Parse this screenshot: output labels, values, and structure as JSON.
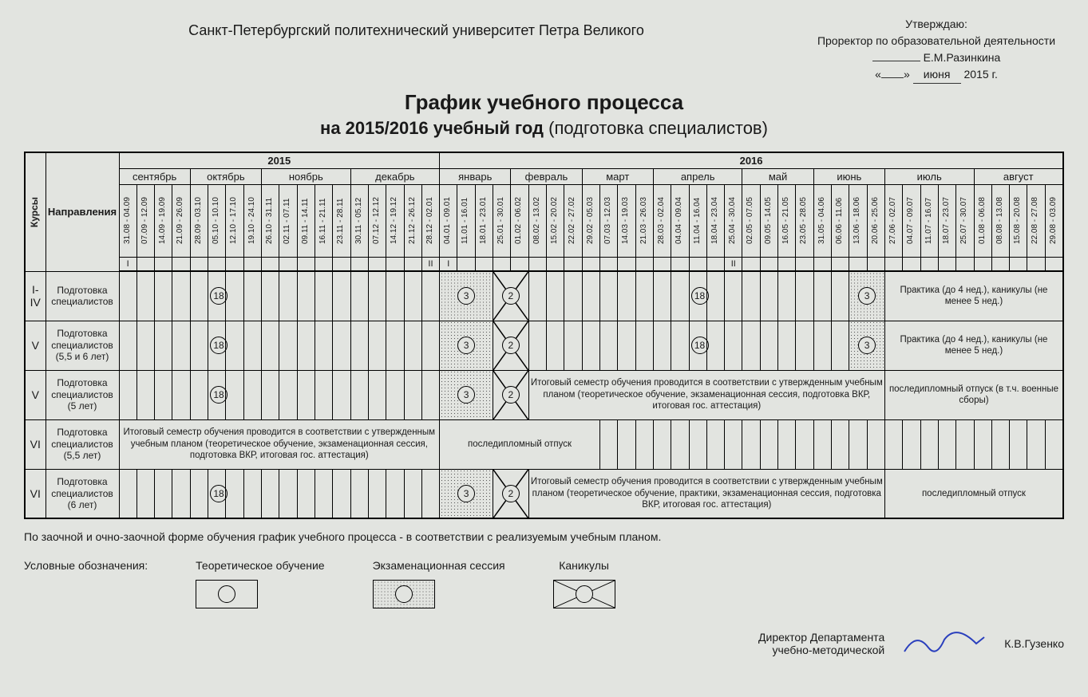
{
  "university": "Санкт-Петербургский  политехнический университет Петра Великого",
  "approval": {
    "line1": "Утверждаю:",
    "line2": "Проректор по образовательной деятельности",
    "name": "Е.М.Разинкина",
    "date_suffix_month": "июня",
    "date_year": "2015 г."
  },
  "title": "График учебного процесса",
  "subtitle_prefix": "на 2015/2016 учебный год",
  "subtitle_suffix": "(подготовка специалистов)",
  "headers": {
    "courses": "Курсы",
    "directions": "Направления"
  },
  "years": {
    "y2015": "2015",
    "y2016": "2016"
  },
  "months": [
    "сентябрь",
    "октябрь",
    "ноябрь",
    "декабрь",
    "январь",
    "февраль",
    "март",
    "апрель",
    "май",
    "июнь",
    "июль",
    "август"
  ],
  "semester_marks": {
    "s1": "I",
    "s2": "II"
  },
  "weeks": [
    "31.08 - 04.09",
    "07.09 - 12.09",
    "14.09 - 19.09",
    "21.09 - 26.09",
    "28.09 - 03.10",
    "05.10 - 10.10",
    "12.10 - 17.10",
    "19.10 - 24.10",
    "26.10 - 31.11",
    "02.11 - 07.11",
    "09.11 - 14.11",
    "16.11 - 21.11",
    "23.11 - 28.11",
    "30.11 - 05.12",
    "07.12 - 12.12",
    "14.12 - 19.12",
    "21.12 - 26.12",
    "28.12 - 02.01",
    "04.01 - 09.01",
    "11.01 - 16.01",
    "18.01 - 23.01",
    "25.01 - 30.01",
    "01.02 - 06.02",
    "08.02 - 13.02",
    "15.02 - 20.02",
    "22.02 - 27.02",
    "29.02 - 05.03",
    "07.03 - 12.03",
    "14.03 - 19.03",
    "21.03 - 26.03",
    "28.03 - 02.04",
    "04.04 - 09.04",
    "11.04 - 16.04",
    "18.04 - 23.04",
    "25.04 - 30.04",
    "02.05 - 07.05",
    "09.05 - 14.05",
    "16.05 - 21.05",
    "23.05 - 28.05",
    "31.05 - 04.06",
    "06.06 - 11.06",
    "13.06 - 18.06",
    "20.06 - 25.06",
    "27.06 - 02.07",
    "04.07 - 09.07",
    "11.07 - 16.07",
    "18.07 - 23.07",
    "25.07 - 30.07",
    "01.08 - 06.08",
    "08.08 - 13.08",
    "15.08 - 20.08",
    "22.08 - 27.08",
    "29.08 - 03.09"
  ],
  "rows": [
    {
      "course": "I-IV",
      "dir": "Подготовка специалистов",
      "w18a": "18",
      "exam": "3",
      "hol": "2",
      "w18b": "18",
      "exam2": "3",
      "tail": "Практика (до 4 нед.), каникулы (не менее 5 нед.)"
    },
    {
      "course": "V",
      "dir": "Подготовка специалистов (5,5 и 6 лет)",
      "w18a": "18",
      "exam": "3",
      "hol": "2",
      "w18b": "18",
      "exam2": "3",
      "tail": "Практика (до 4 нед.), каникулы (не менее 5 нед.)"
    },
    {
      "course": "V",
      "dir": "Подготовка специалистов (5 лет)",
      "w18a": "18",
      "exam": "3",
      "hol": "2",
      "mid": "Итоговый семестр обучения проводится в соответствии с утвержденным учебным планом (теоретическое обучение, экзаменационная сессия, подготовка ВКР, итоговая гос. аттестация)",
      "tail": "последипломный отпуск (в т.ч. военные сборы)"
    },
    {
      "course": "VI",
      "dir": "Подготовка специалистов (5,5 лет)",
      "front": "Итоговый семестр обучения проводится в соответствии с утвержденным учебным планом (теоретическое обучение, экзаменационная сессия, подготовка ВКР, итоговая гос. аттестация)",
      "tail": "последипломный отпуск"
    },
    {
      "course": "VI",
      "dir": "Подготовка специалистов (6 лет)",
      "w18a": "18",
      "exam": "3",
      "hol": "2",
      "mid": "Итоговый семестр обучения проводится в соответствии с утвержденным учебным планом (теоретическое обучение, практики, экзаменационная сессия, подготовка ВКР, итоговая гос. аттестация)",
      "tail": "последипломный отпуск"
    }
  ],
  "footnote": "По заочной и очно-заочной форме обучения график учебного процесса - в соответствии с реализуемым учебным планом.",
  "legend": {
    "label": "Условные обозначения:",
    "theory": "Теоретическое обучение",
    "exam": "Экзаменационная сессия",
    "holiday": "Каникулы"
  },
  "signer": {
    "title1": "Директор Департамента",
    "title2": "учебно-методической",
    "name": "К.В.Гузенко"
  }
}
